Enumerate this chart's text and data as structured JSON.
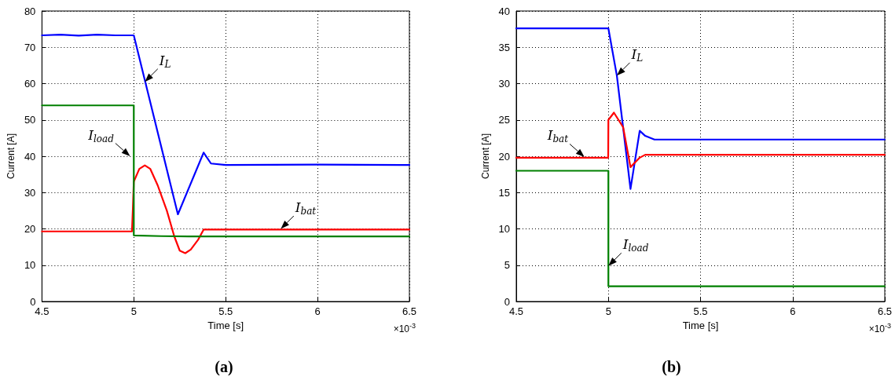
{
  "chart_data": [
    {
      "type": "line",
      "title": "(a)",
      "xlabel": "Time [s]",
      "ylabel": "Current [A]",
      "xlim": [
        4.5,
        6.5
      ],
      "xticks": [
        4.5,
        5,
        5.5,
        6,
        6.5
      ],
      "ylim": [
        0,
        80
      ],
      "yticks": [
        0,
        10,
        20,
        30,
        40,
        50,
        60,
        70,
        80
      ],
      "grid": true,
      "marker": "none",
      "line_style": "solid",
      "series": [
        {
          "color": "#0000ff",
          "x": [
            4.5,
            4.6,
            4.7,
            4.8,
            4.9,
            5.0,
            5.24,
            5.38,
            5.42,
            5.5,
            6.0,
            6.5
          ],
          "values": [
            73.3,
            73.5,
            73.2,
            73.5,
            73.3,
            73.3,
            24,
            41,
            38,
            37.6,
            37.7,
            37.6
          ]
        },
        {
          "color": "#ff0000",
          "x": [
            4.5,
            4.99,
            4.995,
            5.0,
            5.03,
            5.06,
            5.09,
            5.13,
            5.18,
            5.22,
            5.25,
            5.28,
            5.31,
            5.35,
            5.38,
            6.0,
            6.5
          ],
          "values": [
            19.3,
            19.3,
            25.5,
            33,
            36.5,
            37.5,
            36.5,
            32,
            25,
            18,
            14,
            13.3,
            14.3,
            17,
            19.8,
            19.8,
            19.8
          ]
        },
        {
          "color": "#008000",
          "x": [
            4.5,
            5.0,
            5.0,
            5.15,
            5.3,
            6.5
          ],
          "values": [
            54,
            54,
            18.2,
            18,
            17.9,
            17.9
          ]
        }
      ],
      "annotations": [
        {
          "text": "I$_{L}$",
          "x": 5.06,
          "y": 60.5
        },
        {
          "text": "I$_{load}$",
          "x": 4.98,
          "y": 40
        },
        {
          "text": "I$_{bat}$",
          "x": 5.8,
          "y": 20
        },
        "×10$^{-3}$"
      ]
    },
    {
      "type": "line",
      "title": "(b)",
      "xlabel": "Time [s]",
      "ylabel": "Current [A]",
      "xlim": [
        4.5,
        6.5
      ],
      "xticks": [
        4.5,
        5,
        5.5,
        6,
        6.5
      ],
      "ylim": [
        0,
        40
      ],
      "yticks": [
        0,
        5,
        10,
        15,
        20,
        25,
        30,
        35,
        40
      ],
      "grid": true,
      "marker": "none",
      "line_style": "solid",
      "series": [
        {
          "color": "#0000ff",
          "x": [
            4.5,
            5.0,
            5.046,
            5.12,
            5.17,
            5.2,
            5.25,
            6.5
          ],
          "values": [
            37.6,
            37.6,
            31.1,
            15.5,
            23.5,
            22.8,
            22.3,
            22.3
          ]
        },
        {
          "color": "#ff0000",
          "x": [
            4.5,
            4.999,
            5.0,
            5.03,
            5.08,
            5.12,
            5.17,
            5.2,
            6.5
          ],
          "values": [
            19.8,
            19.8,
            25,
            26,
            24,
            18.5,
            19.8,
            20.2,
            20.2
          ]
        },
        {
          "color": "#008000",
          "x": [
            4.5,
            5.0,
            5.0,
            6.5
          ],
          "values": [
            18,
            18,
            2.1,
            2.1
          ]
        }
      ],
      "annotations": [
        {
          "text": "I$_{L}$",
          "x": 5.046,
          "y": 31.1
        },
        {
          "text": "I$_{bat}$",
          "x": 4.87,
          "y": 19.9
        },
        {
          "text": "I$_{load}$",
          "x": 5.0,
          "y": 4.9
        },
        "×10$^{-3}$"
      ]
    }
  ]
}
